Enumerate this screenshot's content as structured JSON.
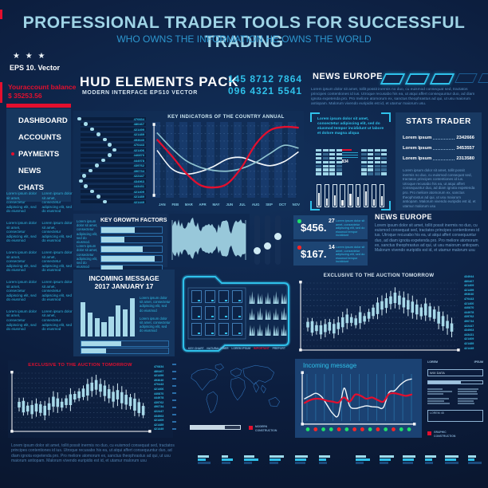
{
  "header": {
    "title": "PROFESSIONAL TRADER TOOLS FOR SUCCESSFUL TRADING",
    "subtitle": "WHO OWNS THE INFORMATION HE OWNS THE WORLD"
  },
  "sidebar": {
    "stars": "★ ★ ★",
    "eps": "EPS 10. Vector",
    "balance_label": "Youraccount balance",
    "balance_value": "$ 35253.56",
    "menu": [
      {
        "label": "DASHBOARD",
        "bullet": false
      },
      {
        "label": "ACCOUNTS",
        "bullet": false
      },
      {
        "label": "PAYMENTS",
        "bullet": true
      },
      {
        "label": "NEWS",
        "bullet": false
      },
      {
        "label": "CHATS",
        "bullet": false
      }
    ],
    "lorem_block": "Lorem ipsum dolor sit amet, consectetur adipiscing elit, sed do eiusmod"
  },
  "brand": {
    "title": "HUD ELEMENTS PACK",
    "subtitle": "MODERN INTERFACE EPS10 VECTOR",
    "phone1": "145 8712 7864",
    "phone2": "096 4321 5541"
  },
  "news_top": {
    "title": "NEWS EUROPE",
    "segments": [
      true,
      true,
      true,
      false,
      false
    ],
    "text": "Lorem ipsum dolor sit amet, tollit possit inermis no duo, cu euismod consequat sed, tractatos principes contentiones id ius. Utroque recusabo his ea, ut atqui affert consequuntur duo, ad diam ignota expetenda pro. Pro meliore atomorum ex, sanctus theophrastus ad qui, ut usu maiorum antiopam. Malorum vivendo euripidis est id, et utamur maiorum usu."
  },
  "bracket_panel": {
    "text": "Lorem ipsum dolor sit amet, consectetur adipiscing elit, sed do eiusmod tempor incididunt ut labore et dolore magna aliqua",
    "code": "834"
  },
  "stats": {
    "title": "STATS TRADER",
    "rows": [
      {
        "label": "Lorem ipsum",
        "value": "2342666"
      },
      {
        "label": "Lorem Ipsum",
        "value": "3453557"
      },
      {
        "label": "Lorem Ipsum",
        "value": "2313580"
      }
    ],
    "text": "Lorem ipsum dolor sit amet, tollit possit inermis no duo, cu euismod consequat sed, tractatos principes contentiones id ius. Utroque recusabo his ea, ut atqui affert consequuntur duo, ad diam ignota expetenda pro. Pro meliore atomorum ex, sanctus theophrastus ad qui, ut usu maiorum antiopam. Malorum vivendo euripidis est id, et utamur malorum usu"
  },
  "growth": {
    "title": "KEY GROWTH FACTORS",
    "note": "Lorem ipsum dolor sit amet, consectetur adipiscing elit, sed do eiusmod. Lorem ipsum dolor sit amet, consectetur adipiscing elit, sed do eiusmod"
  },
  "prices": [
    {
      "amount": "$456.",
      "cents": "27",
      "dot_color": "#1fe06a",
      "note": "Lorem ipsum dolor sit amet, consectetur adipiscing elit, sed do eiusmod tempor incididunt"
    },
    {
      "amount": "$167.",
      "cents": "14",
      "dot_color": "#ff2626",
      "note": "Lorem ipsum dolor sit amet, consectetur adipiscing elit, sed do eiusmod tempor incididunt"
    }
  ],
  "news_mid": {
    "title": "NEWS EUROPE",
    "text": "Lorem ipsum dolor sit amet, tollit possit inermis no duo, cu euismod consequat sed, tractatos principes contentiones id ius. Utroque recusabo his ea, ut atqui affert consequuntur duo, ad diam ignota expetenda pro. Pro meliore atomorum ex, sanctus theophrastus ad qui, ut usu maiorum antiopam. Malorum vivendo euripidis est id, et utamur malorum usu"
  },
  "incoming_panel": {
    "title_line1": "INCOMING MESSAGE",
    "title_line2": "2017 JANUARY 17",
    "note1": "Lorem ipsum dolor sit amet, consectetur adipiscing elit, sed do eiusmod",
    "note2": "Lorem ipsum dolor sit amet, consectetur adipiscing elit, sed do eiusmod"
  },
  "folder": {
    "labels": [
      {
        "text": "KEY CHART",
        "red": false
      },
      {
        "text": "NATURAL FIBER",
        "red": false
      },
      {
        "text": "LOREM IPSUM",
        "red": false
      },
      {
        "text": "IMPORTANT",
        "red": true
      },
      {
        "text": "PREPORT",
        "red": false
      }
    ]
  },
  "map_zone": {
    "legend_line1": "MODERN",
    "legend_line2": "CONSTRUCTION"
  },
  "form_panel": {
    "label_left": "LOREM",
    "label_right": "IPSUM",
    "input_value": "WIX DATA",
    "box_label": "LOREM 45",
    "legend_line1": "GRAPHIC",
    "legend_line2": "CONSTRUCTION"
  },
  "footer": {
    "text": "Lorem ipsum dolor sit amet, tollit possit inermis no duo, cu euismod consequat sed, tractatos principes contentiones id ius. Utroque recusabo his ea, ut atqui affert consequuntur duo, ad diam ignota expetenda pro. Pro meliore atomorum ex, sanctus theophrastus ad qui, ut usu maiorum antiopam. Malorum vivendo euripidis est id, et utamur malorum usu"
  },
  "number_lists": {
    "main_left": [
      "470834",
      "480467",
      "421499",
      "421489",
      "493640",
      "470443",
      "421406",
      "440870",
      "444978",
      "439762",
      "490734",
      "422447",
      "434963",
      "443431",
      "421409",
      "421489",
      "421449"
    ],
    "auction_top": [
      "434944",
      "480467",
      "421409",
      "421499",
      "493640",
      "470443",
      "421400",
      "440870",
      "444978",
      "439762",
      "490734",
      "422447",
      "434963",
      "443431",
      "421409",
      "421489",
      "421449"
    ],
    "auction_bottom": [
      "470834",
      "480467",
      "421499",
      "493640",
      "470443",
      "421406",
      "440870",
      "444978",
      "439762",
      "490734",
      "422447",
      "434963",
      "421409",
      "421489",
      "421449"
    ]
  },
  "decor": {
    "dot_offsets": [
      2,
      10,
      18,
      26,
      34,
      40,
      46,
      40,
      32,
      24,
      16,
      8,
      4,
      10,
      18,
      26,
      34
    ],
    "meter_values": [
      60,
      35,
      50,
      25,
      55,
      40,
      65,
      30,
      45
    ],
    "slider_positions": [
      65,
      55,
      35
    ],
    "map_progress": 70,
    "incoming_progress": [
      46,
      28
    ]
  },
  "chart_data": [
    {
      "id": "key_indicators",
      "type": "line",
      "title": "KEY INDICATORS OF THE COUNTRY ANNUAL",
      "categories": [
        "JAN",
        "FEB",
        "MAR",
        "APR",
        "MAY",
        "JUN",
        "JUL",
        "AUG",
        "SEP",
        "OCT",
        "NOV"
      ],
      "ylim": [
        0,
        100
      ],
      "grid": "dotted-horizontal",
      "legend_position": "none",
      "series": [
        {
          "name": "index-red",
          "color": "#e30f2e",
          "values": [
            78,
            55,
            30,
            12,
            8,
            14,
            38,
            72,
            92,
            97,
            96
          ]
        },
        {
          "name": "index-teal",
          "color": "#8fc3cf",
          "values": [
            88,
            66,
            48,
            38,
            33,
            32,
            36,
            45,
            58,
            70,
            66
          ]
        },
        {
          "name": "index-white",
          "color": "#f2f6fa",
          "values": [
            62,
            36,
            28,
            31,
            39,
            50,
            52,
            45,
            40,
            46,
            60
          ]
        }
      ]
    },
    {
      "id": "growth_factors",
      "type": "bar",
      "orientation": "horizontal",
      "title": "KEY GROWTH FACTORS",
      "values": [
        55,
        38,
        68,
        88,
        36
      ],
      "ylim": [
        0,
        100
      ]
    },
    {
      "id": "incoming_bars",
      "type": "bar",
      "title": "INCOMING MESSAGE 2017 JANUARY 17",
      "values": [
        85,
        58,
        46,
        36,
        50,
        76,
        66,
        95
      ],
      "ylim": [
        0,
        100
      ]
    },
    {
      "id": "auction_top",
      "type": "candlestick",
      "title": "EXCLUSIVE TO THE AUCTION TOMORROW",
      "values": [
        30,
        26,
        24,
        21,
        24,
        27,
        23,
        28,
        34,
        40,
        38,
        35,
        42,
        40,
        46,
        52,
        58,
        63,
        67,
        72,
        76,
        72,
        68,
        64,
        60,
        56,
        52,
        56,
        52,
        48,
        42,
        36,
        30,
        25
      ],
      "ylim": [
        0,
        100
      ]
    },
    {
      "id": "auction_bottom",
      "type": "candlestick",
      "title": "EXCLUSIVE TO THE AUCTION TOMORROW",
      "values": [
        38,
        34,
        30,
        28,
        32,
        30,
        26,
        34,
        44,
        42,
        38,
        44,
        48,
        54,
        58,
        62,
        68,
        74,
        78,
        72,
        66,
        60,
        54,
        58,
        52,
        48,
        44,
        38,
        32,
        26
      ],
      "ylim": [
        0,
        100
      ]
    },
    {
      "id": "incoming_line",
      "type": "line",
      "title": "Incoming message",
      "grid": "vertical",
      "ylim": [
        0,
        100
      ],
      "series": [
        {
          "name": "signal-red",
          "color": "#e30f2e",
          "values": [
            35,
            42,
            45,
            44,
            40,
            38,
            36,
            48,
            38,
            55,
            52,
            45,
            48,
            42,
            38,
            56,
            58,
            55,
            52,
            55
          ]
        },
        {
          "name": "signal-white",
          "color": "#eef5fa",
          "values": [
            45,
            52,
            58,
            50,
            30,
            10,
            6,
            70,
            28,
            22,
            25,
            28,
            26,
            25,
            24,
            60,
            64,
            78,
            88,
            92
          ]
        }
      ],
      "dot_colors": [
        "#1fe06a",
        "#ff2626",
        "#1fe06a",
        "#1fe06a",
        "#ff2626",
        "#1fe06a",
        "#ff2626",
        "#ff2626",
        "#1fe06a",
        "#ff2626",
        "#1fe06a",
        "#ff2626",
        "#1fe06a",
        "#1fe06a"
      ]
    }
  ]
}
